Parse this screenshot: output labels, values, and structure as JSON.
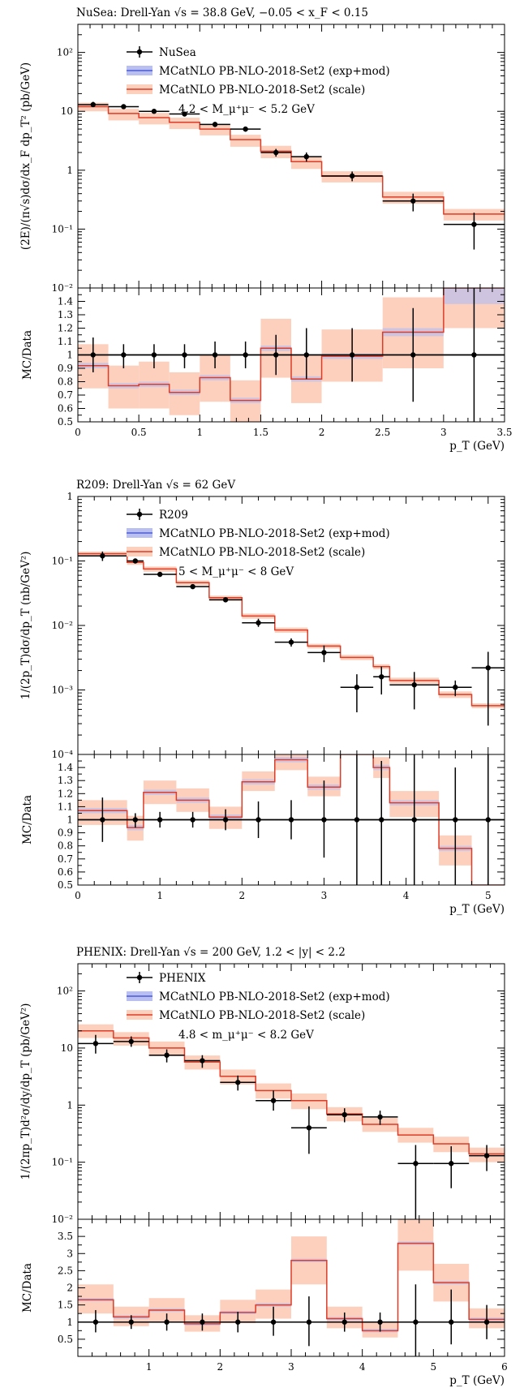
{
  "colors": {
    "data": "#000000",
    "exp_band": "#b9bff0",
    "exp_line": "#4a5bd6",
    "scale_band": "#fdd0bd",
    "scale_line": "#dc3d28"
  },
  "panels": [
    {
      "title": "NuSea: Drell-Yan √s = 38.8 GeV, −0.05 < x_F < 0.15",
      "ylabel": "(2E)/(π√s)dσ/dx_F dp_T² (pb/GeV)",
      "xlabel": "p_T (GeV)",
      "legend": [
        "NuSea",
        "MCatNLO PB-NLO-2018-Set2 (exp+mod)",
        "MCatNLO PB-NLO-2018-Set2 (scale)",
        "4.2 < M_μ⁺μ⁻ < 5.2 GeV"
      ],
      "ratio_label": "MC/Data",
      "x_ticks": [
        "0",
        "0.5",
        "1",
        "1.5",
        "2",
        "2.5",
        "3",
        "3.5"
      ],
      "y_ticks": [
        "10⁻¹",
        "1",
        "10",
        "10²"
      ],
      "y_ticks_extra": [
        "10⁻²"
      ],
      "ratio_ticks": [
        "0.5",
        "0.6",
        "0.7",
        "0.8",
        "0.9",
        "1",
        "1.1",
        "1.2",
        "1.3",
        "1.4"
      ]
    },
    {
      "title": "R209: Drell-Yan √s = 62 GeV",
      "ylabel": "1/(2p_T)dσ/dp_T (nb/GeV²)",
      "xlabel": "p_T (GeV)",
      "legend": [
        "R209",
        "MCatNLO PB-NLO-2018-Set2 (exp+mod)",
        "MCatNLO PB-NLO-2018-Set2 (scale)",
        "5 < M_μ⁺μ⁻ < 8 GeV"
      ],
      "ratio_label": "MC/Data",
      "x_ticks": [
        "0",
        "1",
        "2",
        "3",
        "4",
        "5"
      ],
      "y_ticks": [
        "10⁻³",
        "10⁻²",
        "10⁻¹",
        "1"
      ],
      "y_ticks_extra": [
        "10⁻⁴"
      ],
      "ratio_ticks": [
        "0.5",
        "0.6",
        "0.7",
        "0.8",
        "0.9",
        "1",
        "1.1",
        "1.2",
        "1.3",
        "1.4"
      ]
    },
    {
      "title": "PHENIX: Drell-Yan √s = 200 GeV, 1.2 < |y| < 2.2",
      "ylabel": "1/(2πp_T)d²σ/dy/dp_T (pb/GeV²)",
      "xlabel": "p_T (GeV)",
      "legend": [
        "PHENIX",
        "MCatNLO PB-NLO-2018-Set2 (exp+mod)",
        "MCatNLO PB-NLO-2018-Set2 (scale)",
        "4.8 < m_μ⁺μ⁻ < 8.2 GeV"
      ],
      "ratio_label": "MC/Data",
      "x_ticks": [
        "1",
        "2",
        "3",
        "4",
        "5",
        "6"
      ],
      "y_ticks": [
        "10⁻¹",
        "1",
        "10",
        "10²"
      ],
      "y_ticks_extra": [
        "10⁻²"
      ],
      "ratio_ticks": [
        "0.5",
        "1",
        "1.5",
        "2",
        "2.5",
        "3",
        "3.5"
      ]
    }
  ],
  "chart_data": [
    {
      "type": "line",
      "title": "NuSea: Drell-Yan √s = 38.8 GeV, −0.05 < x_F < 0.15",
      "xlabel": "p_T (GeV)",
      "ylabel": "(2E)/(π√s)dσ/dx_F dp_T² (pb/GeV)",
      "xlim": [
        0,
        3.5
      ],
      "ylim": [
        0.01,
        300
      ],
      "yscale": "log",
      "ratio_ylim": [
        0.5,
        1.5
      ],
      "data": {
        "x": [
          0.125,
          0.375,
          0.625,
          0.875,
          1.125,
          1.375,
          1.625,
          1.875,
          2.25,
          2.75,
          3.25
        ],
        "xlo": [
          0,
          0.25,
          0.5,
          0.75,
          1.0,
          1.25,
          1.5,
          1.75,
          2.0,
          2.5,
          3.0
        ],
        "xhi": [
          0.25,
          0.5,
          0.75,
          1.0,
          1.25,
          1.5,
          1.75,
          2.0,
          2.5,
          3.0,
          3.5
        ],
        "y": [
          13,
          12,
          10,
          9,
          6,
          5,
          2.0,
          1.7,
          0.8,
          0.3,
          0.12
        ],
        "ylo": [
          11.8,
          11,
          9.2,
          8.2,
          5.4,
          4.5,
          1.7,
          1.4,
          0.65,
          0.2,
          0.045
        ],
        "yhi": [
          14.5,
          13,
          10.8,
          9.8,
          6.6,
          5.5,
          2.3,
          2.0,
          0.95,
          0.4,
          0.19
        ]
      },
      "mc": {
        "edges": [
          0,
          0.25,
          0.5,
          0.75,
          1.0,
          1.25,
          1.5,
          1.75,
          2.0,
          2.5,
          3.0,
          3.5
        ],
        "values": [
          12,
          9.2,
          7.8,
          6.5,
          5.0,
          3.3,
          2.1,
          1.4,
          0.79,
          0.35,
          0.18
        ],
        "band_lo": [
          10,
          7.0,
          6.0,
          5.0,
          3.9,
          2.5,
          1.6,
          1.05,
          0.62,
          0.27,
          0.14
        ],
        "band_hi": [
          14,
          11,
          9.4,
          7.8,
          6.0,
          4.0,
          2.6,
          1.7,
          0.96,
          0.43,
          0.22
        ]
      },
      "ratio": {
        "values": [
          0.92,
          0.77,
          0.78,
          0.72,
          0.83,
          0.66,
          1.05,
          0.82,
          0.99,
          1.17,
          1.5
        ],
        "band_lo": [
          0.75,
          0.6,
          0.6,
          0.55,
          0.65,
          0.5,
          0.83,
          0.64,
          0.8,
          0.9,
          1.2
        ],
        "band_hi": [
          1.08,
          0.92,
          0.95,
          0.87,
          1.0,
          0.81,
          1.27,
          1.0,
          1.19,
          1.43,
          1.5
        ],
        "exp_lo": [
          0.9,
          0.75,
          0.76,
          0.7,
          0.81,
          0.64,
          1.03,
          0.8,
          0.97,
          1.14,
          1.38
        ],
        "exp_hi": [
          0.94,
          0.79,
          0.8,
          0.74,
          0.85,
          0.68,
          1.07,
          0.84,
          1.01,
          1.2,
          1.5
        ],
        "data_errlo": [
          0.87,
          0.9,
          0.9,
          0.9,
          0.9,
          0.9,
          0.85,
          0.82,
          0.8,
          0.65,
          0.5
        ],
        "data_errhi": [
          1.13,
          1.08,
          1.08,
          1.08,
          1.1,
          1.1,
          1.15,
          1.2,
          1.2,
          1.35,
          1.5
        ]
      }
    },
    {
      "type": "line",
      "title": "R209: Drell-Yan √s = 62 GeV",
      "xlabel": "p_T (GeV)",
      "ylabel": "1/(2p_T)dσ/dp_T (nb/GeV²)",
      "xlim": [
        0,
        5.2
      ],
      "ylim": [
        0.0001,
        1
      ],
      "yscale": "log",
      "ratio_ylim": [
        0.5,
        1.5
      ],
      "data": {
        "x": [
          0.3,
          0.7,
          1.0,
          1.4,
          1.8,
          2.2,
          2.6,
          3.0,
          3.4,
          3.7,
          4.1,
          4.6,
          5.0
        ],
        "xlo": [
          0.0,
          0.6,
          0.8,
          1.2,
          1.6,
          2.0,
          2.4,
          2.8,
          3.2,
          3.6,
          3.8,
          4.4,
          4.8
        ],
        "xhi": [
          0.6,
          0.8,
          1.2,
          1.6,
          2.0,
          2.4,
          2.8,
          3.2,
          3.6,
          3.8,
          4.4,
          4.8,
          5.2
        ],
        "y": [
          0.12,
          0.1,
          0.062,
          0.04,
          0.025,
          0.011,
          0.0055,
          0.0038,
          0.0011,
          0.0016,
          0.0012,
          0.0011,
          0.0022
        ],
        "ylo": [
          0.1,
          0.095,
          0.058,
          0.038,
          0.023,
          0.0095,
          0.0047,
          0.0027,
          0.00045,
          0.00085,
          0.0005,
          0.0008,
          0.00028
        ],
        "yhi": [
          0.14,
          0.105,
          0.066,
          0.042,
          0.027,
          0.0127,
          0.0063,
          0.0049,
          0.00175,
          0.0023,
          0.0019,
          0.0014,
          0.0039
        ]
      },
      "mc": {
        "edges": [
          0,
          0.6,
          0.8,
          1.2,
          1.6,
          2.0,
          2.4,
          2.8,
          3.2,
          3.6,
          3.8,
          4.4,
          4.8,
          5.2
        ],
        "values": [
          0.13,
          0.095,
          0.075,
          0.046,
          0.027,
          0.014,
          0.0085,
          0.0048,
          0.0032,
          0.0023,
          0.0014,
          0.00085,
          0.00057
        ],
        "band_lo": [
          0.12,
          0.087,
          0.068,
          0.042,
          0.024,
          0.0127,
          0.0077,
          0.0044,
          0.0029,
          0.0021,
          0.00125,
          0.00075,
          0.00052
        ],
        "band_hi": [
          0.14,
          0.103,
          0.082,
          0.05,
          0.029,
          0.0153,
          0.0093,
          0.0052,
          0.0035,
          0.0025,
          0.00155,
          0.00095,
          0.00062
        ]
      },
      "ratio": {
        "values": [
          1.07,
          0.94,
          1.21,
          1.15,
          1.02,
          1.29,
          1.46,
          1.25,
          1.5,
          1.4,
          1.13,
          0.78,
          0.5
        ],
        "band_lo": [
          0.96,
          0.84,
          1.12,
          1.06,
          0.93,
          1.22,
          1.38,
          1.18,
          1.5,
          1.32,
          1.02,
          0.65,
          0.5
        ],
        "band_hi": [
          1.15,
          1.03,
          1.3,
          1.24,
          1.1,
          1.37,
          1.5,
          1.33,
          1.5,
          1.48,
          1.22,
          0.88,
          0.5
        ],
        "exp_lo": [
          1.05,
          0.92,
          1.19,
          1.13,
          1.0,
          1.27,
          1.44,
          1.23,
          1.5,
          1.38,
          1.11,
          0.76,
          0.5
        ],
        "exp_hi": [
          1.09,
          0.96,
          1.23,
          1.17,
          1.04,
          1.31,
          1.48,
          1.27,
          1.5,
          1.42,
          1.15,
          0.8,
          0.5
        ],
        "data_errlo": [
          0.83,
          0.94,
          0.94,
          0.94,
          0.92,
          0.86,
          0.85,
          0.71,
          0.5,
          0.5,
          0.5,
          0.5,
          0.5
        ],
        "data_errhi": [
          1.17,
          1.05,
          1.06,
          1.06,
          1.08,
          1.14,
          1.15,
          1.3,
          1.5,
          1.45,
          1.5,
          1.4,
          1.5
        ]
      }
    },
    {
      "type": "line",
      "title": "PHENIX: Drell-Yan √s = 200 GeV, 1.2 < |y| < 2.2",
      "xlabel": "p_T (GeV)",
      "ylabel": "1/(2πp_T)d²σ/dy/dp_T (pb/GeV²)",
      "xlim": [
        0,
        6
      ],
      "ylim": [
        0.01,
        300
      ],
      "yscale": "log",
      "ratio_ylim": [
        0,
        4
      ],
      "data": {
        "x": [
          0.25,
          0.75,
          1.25,
          1.75,
          2.25,
          2.75,
          3.25,
          3.75,
          4.25,
          4.75,
          5.25,
          5.75
        ],
        "xlo": [
          0,
          0.5,
          1.0,
          1.5,
          2.0,
          2.5,
          3.0,
          3.5,
          4.0,
          4.5,
          5.0,
          5.5
        ],
        "xhi": [
          0.5,
          1.0,
          1.5,
          2.0,
          2.5,
          3.0,
          3.5,
          4.0,
          4.5,
          5.0,
          5.5,
          6.0
        ],
        "y": [
          12,
          13,
          7.5,
          6,
          2.5,
          1.2,
          0.4,
          0.68,
          0.62,
          0.095,
          0.095,
          0.13
        ],
        "ylo": [
          8,
          10.5,
          5.6,
          4.5,
          1.8,
          0.8,
          0.14,
          0.5,
          0.45,
          0.008,
          0.035,
          0.07
        ],
        "yhi": [
          17,
          16,
          9.5,
          7.5,
          3.3,
          1.8,
          0.95,
          0.88,
          0.8,
          0.2,
          0.19,
          0.2
        ]
      },
      "mc": {
        "edges": [
          0,
          0.5,
          1.0,
          1.5,
          2.0,
          2.5,
          3.0,
          3.5,
          4.0,
          4.5,
          5.0,
          5.5,
          6.0
        ],
        "values": [
          20,
          15,
          10,
          5.7,
          3.2,
          1.8,
          1.2,
          0.7,
          0.46,
          0.3,
          0.21,
          0.14
        ],
        "band_lo": [
          15,
          11,
          7.2,
          4.2,
          2.3,
          1.3,
          0.85,
          0.52,
          0.34,
          0.22,
          0.15,
          0.1
        ],
        "band_hi": [
          26,
          19,
          13,
          7.4,
          4.2,
          2.4,
          1.6,
          0.92,
          0.6,
          0.4,
          0.28,
          0.18
        ]
      },
      "ratio": {
        "values": [
          1.65,
          1.15,
          1.35,
          0.95,
          1.28,
          1.5,
          2.8,
          1.1,
          0.75,
          3.3,
          2.15,
          1.08
        ],
        "band_lo": [
          1.25,
          0.88,
          1.0,
          0.72,
          0.97,
          1.1,
          2.1,
          0.82,
          0.55,
          2.5,
          1.6,
          0.82
        ],
        "band_hi": [
          2.1,
          1.45,
          1.7,
          1.2,
          1.65,
          1.95,
          3.5,
          1.45,
          1.0,
          4.0,
          2.7,
          1.4
        ],
        "exp_lo": [
          1.6,
          1.1,
          1.3,
          0.9,
          1.23,
          1.45,
          2.75,
          1.05,
          0.7,
          3.25,
          2.1,
          1.03
        ],
        "exp_hi": [
          1.7,
          1.2,
          1.4,
          1.0,
          1.33,
          1.55,
          2.85,
          1.15,
          0.8,
          3.35,
          2.2,
          1.13
        ],
        "data_errlo": [
          0.7,
          0.8,
          0.75,
          0.75,
          0.7,
          0.6,
          0.3,
          0.72,
          0.72,
          0.0,
          0.35,
          0.5
        ],
        "data_errhi": [
          1.35,
          1.2,
          1.25,
          1.25,
          1.3,
          1.45,
          1.75,
          1.28,
          1.28,
          2.1,
          1.95,
          1.5
        ]
      }
    }
  ]
}
